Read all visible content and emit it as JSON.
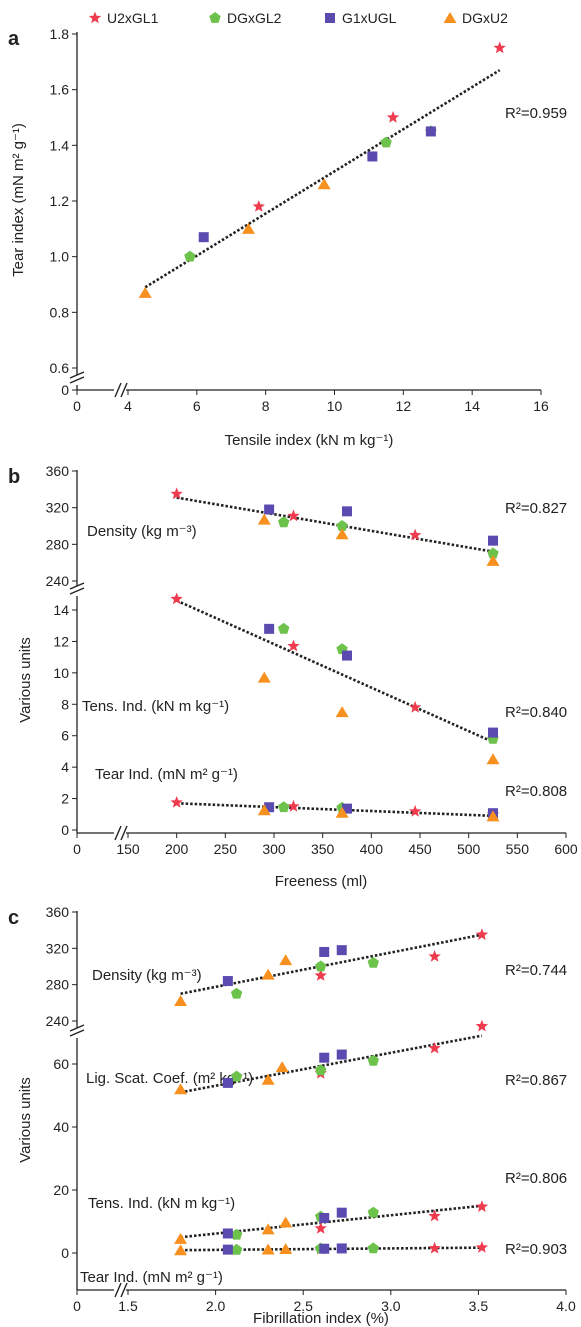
{
  "legend": [
    {
      "name": "U2xGL1",
      "color": "#ee3b4e",
      "marker": "star"
    },
    {
      "name": "DGxGL2",
      "color": "#6cc24a",
      "marker": "pentagon"
    },
    {
      "name": "G1xUGL",
      "color": "#5b4bb0",
      "marker": "square"
    },
    {
      "name": "DGxU2",
      "color": "#f7901e",
      "marker": "triangle"
    }
  ],
  "chart_data": [
    {
      "panel": "a",
      "type": "scatter",
      "xlabel": "Tensile index (kN m kg⁻¹)",
      "ylabel": "Tear index (mN m² g⁻¹)",
      "x_ticks": [
        "0",
        "4",
        "6",
        "8",
        "10",
        "12",
        "14",
        "16"
      ],
      "y_ticks": [
        "0",
        "0.6",
        "0.8",
        "1.0",
        "1.2",
        "1.4",
        "1.6",
        "1.8"
      ],
      "xlim": [
        4,
        16
      ],
      "ylim": [
        0.6,
        1.8
      ],
      "axis_break": true,
      "series": [
        {
          "name": "U2xGL1",
          "points": [
            [
              7.8,
              1.18
            ],
            [
              11.7,
              1.5
            ],
            [
              14.8,
              1.75
            ]
          ]
        },
        {
          "name": "DGxGL2",
          "points": [
            [
              5.8,
              1.0
            ],
            [
              11.5,
              1.41
            ],
            [
              12.8,
              1.45
            ]
          ]
        },
        {
          "name": "G1xUGL",
          "points": [
            [
              6.2,
              1.07
            ],
            [
              11.1,
              1.36
            ],
            [
              12.8,
              1.45
            ]
          ]
        },
        {
          "name": "DGxU2",
          "points": [
            [
              4.5,
              0.87
            ],
            [
              7.5,
              1.1
            ],
            [
              9.7,
              1.26
            ]
          ]
        }
      ],
      "fits": [
        {
          "from": [
            4.5,
            0.89
          ],
          "to": [
            14.8,
            1.67
          ],
          "r2": "R²=0.959"
        }
      ]
    },
    {
      "panel": "b",
      "type": "scatter",
      "xlabel": "Freeness (ml)",
      "ylabel": "Various units",
      "x_ticks": [
        "0",
        "150",
        "200",
        "250",
        "300",
        "350",
        "400",
        "450",
        "500",
        "550",
        "600"
      ],
      "y_ticks_lower": [
        "0",
        "2",
        "4",
        "6",
        "8",
        "10",
        "12",
        "14"
      ],
      "y_ticks_upper": [
        "240",
        "280",
        "320",
        "360"
      ],
      "xlim": [
        150,
        600
      ],
      "ylim_lower": [
        0,
        15
      ],
      "ylim_upper": [
        240,
        360
      ],
      "axis_break": true,
      "annotations": [
        "Density (kg m⁻³)",
        "Tens. Ind. (kN m kg⁻¹)",
        "Tear Ind. (mN m² g⁻¹)"
      ],
      "series": [
        {
          "name": "U2xGL1",
          "density": [
            [
              200,
              335
            ],
            [
              320,
              311
            ],
            [
              445,
              290
            ]
          ],
          "tensile": [
            [
              200,
              14.7
            ],
            [
              320,
              11.7
            ],
            [
              445,
              7.8
            ]
          ],
          "tear": [
            [
              200,
              1.75
            ],
            [
              320,
              1.5
            ],
            [
              445,
              1.18
            ]
          ]
        },
        {
          "name": "DGxGL2",
          "density": [
            [
              310,
              304
            ],
            [
              370,
              300
            ],
            [
              525,
              270
            ]
          ],
          "tensile": [
            [
              310,
              12.8
            ],
            [
              370,
              11.5
            ],
            [
              525,
              5.8
            ]
          ],
          "tear": [
            [
              310,
              1.45
            ],
            [
              370,
              1.41
            ],
            [
              525,
              1.0
            ]
          ]
        },
        {
          "name": "G1xUGL",
          "density": [
            [
              295,
              318
            ],
            [
              375,
              316
            ],
            [
              525,
              284
            ]
          ],
          "tensile": [
            [
              295,
              12.8
            ],
            [
              375,
              11.1
            ],
            [
              525,
              6.2
            ]
          ],
          "tear": [
            [
              295,
              1.45
            ],
            [
              375,
              1.36
            ],
            [
              525,
              1.07
            ]
          ]
        },
        {
          "name": "DGxU2",
          "density": [
            [
              290,
              307
            ],
            [
              370,
              291
            ],
            [
              525,
              262
            ]
          ],
          "tensile": [
            [
              290,
              9.7
            ],
            [
              370,
              7.5
            ],
            [
              525,
              4.5
            ]
          ],
          "tear": [
            [
              290,
              1.26
            ],
            [
              370,
              1.1
            ],
            [
              525,
              0.87
            ]
          ]
        }
      ],
      "fits": [
        {
          "band": "upper",
          "from": [
            200,
            331
          ],
          "to": [
            525,
            272
          ],
          "r2": "R²=0.827"
        },
        {
          "band": "lower",
          "from": [
            200,
            14.6
          ],
          "to": [
            525,
            5.6
          ],
          "r2": "R²=0.840"
        },
        {
          "band": "lower",
          "from": [
            200,
            1.7
          ],
          "to": [
            525,
            0.9
          ],
          "r2": "R²=0.808"
        }
      ]
    },
    {
      "panel": "c",
      "type": "scatter",
      "xlabel": "Fibrillation index (%)",
      "ylabel": "Various units",
      "x_ticks": [
        "0",
        "1.5",
        "2.0",
        "2.5",
        "3.0",
        "3.5",
        "4.0"
      ],
      "y_ticks_lower": [
        "0",
        "20",
        "40",
        "60"
      ],
      "y_ticks_upper": [
        "240",
        "280",
        "320",
        "360"
      ],
      "xlim": [
        1.5,
        4.0
      ],
      "ylim_lower": [
        -5,
        72
      ],
      "ylim_upper": [
        240,
        360
      ],
      "axis_break": true,
      "annotations": [
        "Density (kg m⁻³)",
        "Lig. Scat. Coef. (m² kg⁻¹)",
        "Tens. Ind. (kN m  kg⁻¹)",
        "Tear Ind. (mN m² g⁻¹)"
      ],
      "series": [
        {
          "name": "U2xGL1",
          "density": [
            [
              2.6,
              290
            ],
            [
              3.25,
              311
            ],
            [
              3.52,
              335
            ]
          ],
          "scatter": [
            [
              2.6,
              57
            ],
            [
              3.25,
              65
            ],
            [
              3.52,
              72
            ]
          ],
          "tensile": [
            [
              2.6,
              7.8
            ],
            [
              3.25,
              11.7
            ],
            [
              3.52,
              14.7
            ]
          ],
          "tear": [
            [
              2.6,
              1.2
            ],
            [
              3.25,
              1.5
            ],
            [
              3.52,
              1.75
            ]
          ]
        },
        {
          "name": "DGxGL2",
          "density": [
            [
              2.12,
              270
            ],
            [
              2.6,
              300
            ],
            [
              2.9,
              304
            ]
          ],
          "scatter": [
            [
              2.12,
              56
            ],
            [
              2.6,
              58
            ],
            [
              2.9,
              61
            ]
          ],
          "tensile": [
            [
              2.12,
              5.8
            ],
            [
              2.6,
              11.5
            ],
            [
              2.9,
              12.8
            ]
          ],
          "tear": [
            [
              2.12,
              1.0
            ],
            [
              2.6,
              1.41
            ],
            [
              2.9,
              1.45
            ]
          ]
        },
        {
          "name": "G1xUGL",
          "density": [
            [
              2.07,
              284
            ],
            [
              2.62,
              316
            ],
            [
              2.72,
              318
            ]
          ],
          "scatter": [
            [
              2.07,
              54
            ],
            [
              2.62,
              62
            ],
            [
              2.72,
              63
            ]
          ],
          "tensile": [
            [
              2.07,
              6.2
            ],
            [
              2.62,
              11.1
            ],
            [
              2.72,
              12.8
            ]
          ],
          "tear": [
            [
              2.07,
              1.07
            ],
            [
              2.62,
              1.36
            ],
            [
              2.72,
              1.45
            ]
          ]
        },
        {
          "name": "DGxU2",
          "density": [
            [
              1.8,
              262
            ],
            [
              2.3,
              291
            ],
            [
              2.4,
              307
            ]
          ],
          "scatter": [
            [
              1.8,
              52
            ],
            [
              2.3,
              55
            ],
            [
              2.38,
              59
            ]
          ],
          "tensile": [
            [
              1.8,
              4.5
            ],
            [
              2.3,
              7.5
            ],
            [
              2.4,
              9.7
            ]
          ],
          "tear": [
            [
              1.8,
              0.87
            ],
            [
              2.3,
              1.1
            ],
            [
              2.4,
              1.26
            ]
          ]
        }
      ],
      "fits": [
        {
          "band": "upper",
          "from": [
            1.8,
            270
          ],
          "to": [
            3.52,
            335
          ],
          "r2": "R²=0.744"
        },
        {
          "band": "lower",
          "from": [
            1.8,
            51
          ],
          "to": [
            3.52,
            69
          ],
          "r2": "R²=0.867"
        },
        {
          "band": "lower",
          "from": [
            1.8,
            5
          ],
          "to": [
            3.52,
            15
          ],
          "r2": "R²=0.806"
        },
        {
          "band": "lower",
          "from": [
            1.8,
            0.9
          ],
          "to": [
            3.52,
            1.7
          ],
          "r2": "R²=0.903"
        }
      ]
    }
  ]
}
